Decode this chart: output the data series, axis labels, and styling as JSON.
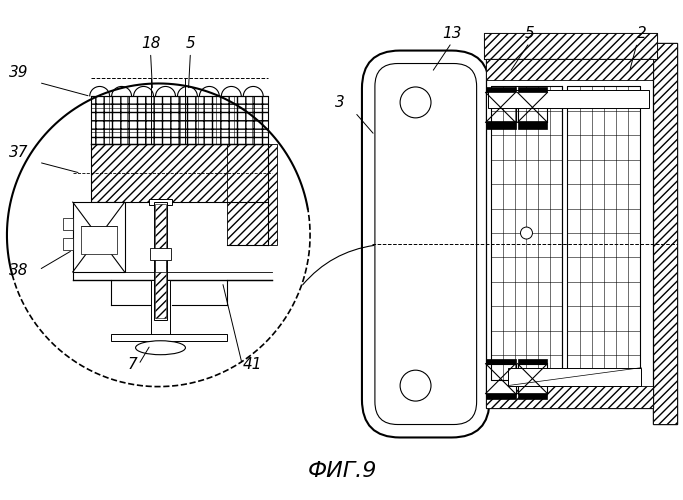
{
  "bg_color": "#ffffff",
  "line_color": "#000000",
  "title": "ФИГ.9",
  "title_fontsize": 16,
  "fig_width": 6.83,
  "fig_height": 5.0,
  "dpi": 100
}
